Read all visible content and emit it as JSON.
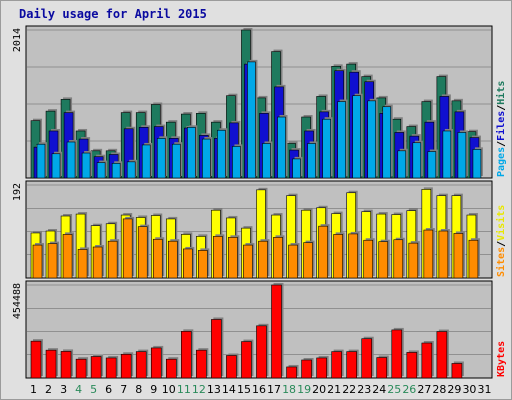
{
  "chart_data": {
    "type": "bar",
    "title": "Daily usage for April 2015",
    "categories": [
      "1",
      "2",
      "3",
      "4",
      "5",
      "6",
      "7",
      "8",
      "9",
      "10",
      "11",
      "12",
      "13",
      "14",
      "15",
      "16",
      "17",
      "18",
      "19",
      "20",
      "21",
      "22",
      "23",
      "24",
      "25",
      "26",
      "27",
      "28",
      "29",
      "30",
      "31"
    ],
    "weekend_days": [
      "4",
      "5",
      "11",
      "12",
      "18",
      "19",
      "25",
      "26"
    ],
    "weekend_color": "#2a8a5a",
    "weekday_color": "#000000",
    "panels": [
      {
        "id": "pages-files-hits",
        "ymax_label": "2014",
        "ymax": 2014,
        "legend": [
          {
            "text": "Pages",
            "color": "#00a8e8"
          },
          {
            "text": "/",
            "color": "#000000"
          },
          {
            "text": "Files",
            "color": "#1010d0"
          },
          {
            "text": "/",
            "color": "#000000"
          },
          {
            "text": "Hits",
            "color": "#1e7a5e"
          }
        ],
        "series": [
          {
            "name": "Hits",
            "color": "#1e7a5e",
            "values": [
              780,
              910,
              1070,
              640,
              370,
              370,
              890,
              890,
              1000,
              760,
              870,
              880,
              760,
              1120,
              2014,
              1090,
              1720,
              470,
              830,
              1110,
              1520,
              1550,
              1380,
              1090,
              800,
              700,
              1040,
              1380,
              1050,
              630,
              null
            ]
          },
          {
            "name": "Files",
            "color": "#1010d0",
            "values": [
              420,
              640,
              890,
              530,
              290,
              320,
              670,
              690,
              700,
              540,
              680,
              580,
              540,
              750,
              1550,
              880,
              1240,
              380,
              640,
              900,
              1460,
              1440,
              1310,
              880,
              620,
              570,
              760,
              1110,
              900,
              550,
              null
            ]
          },
          {
            "name": "Pages",
            "color": "#00a8e8",
            "values": [
              460,
              330,
              490,
              340,
              210,
              200,
              220,
              450,
              540,
              460,
              690,
              530,
              650,
              430,
              1580,
              470,
              830,
              260,
              470,
              800,
              1040,
              1120,
              1050,
              970,
              370,
              480,
              360,
              640,
              620,
              390,
              null
            ]
          }
        ]
      },
      {
        "id": "visits-sites",
        "ymax_label": "192",
        "ymax": 192,
        "legend": [
          {
            "text": "Sites",
            "color": "#ff8c00"
          },
          {
            "text": "/",
            "color": "#000000"
          },
          {
            "text": "Visits",
            "color": "#e8e800"
          }
        ],
        "series": [
          {
            "name": "Visits",
            "color": "#ffff00",
            "values": [
              93,
              97,
              128,
              132,
              108,
              112,
              130,
              125,
              129,
              122,
              90,
              86,
              140,
              124,
              103,
              182,
              130,
              170,
              140,
              145,
              133,
              176,
              137,
              132,
              131,
              139,
              183,
              170,
              170,
              130,
              null
            ]
          },
          {
            "name": "Sites",
            "color": "#ff8c00",
            "values": [
              68,
              71,
              90,
              59,
              64,
              76,
              122,
              106,
              80,
              76,
              60,
              57,
              86,
              84,
              68,
              76,
              84,
              68,
              73,
              107,
              90,
              91,
              78,
              75,
              79,
              72,
              99,
              97,
              92,
              78,
              null
            ]
          }
        ]
      },
      {
        "id": "kbytes",
        "ymax_label": "454488",
        "ymax": 454488,
        "legend": [
          {
            "text": "KBytes",
            "color": "#ff0000"
          }
        ],
        "series": [
          {
            "name": "KBytes",
            "color": "#ff0000",
            "values": [
              180000,
              136000,
              130000,
              92000,
              105000,
              98000,
              116000,
              129000,
              147000,
              92000,
              228000,
              136000,
              286000,
              110000,
              178000,
              255000,
              454488,
              54000,
              88000,
              98000,
              129000,
              129000,
              192000,
              100000,
              235000,
              125000,
              171000,
              227000,
              71000,
              null,
              null
            ]
          }
        ]
      }
    ]
  }
}
